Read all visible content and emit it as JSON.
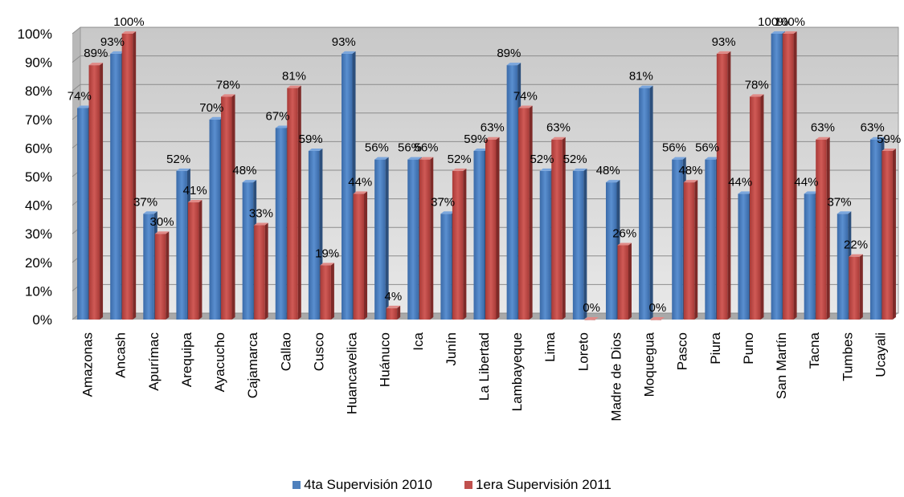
{
  "chart_data": {
    "type": "bar",
    "title": "",
    "xlabel": "",
    "ylabel": "",
    "ylim": [
      0,
      100
    ],
    "yticks": [
      "0%",
      "10%",
      "20%",
      "30%",
      "40%",
      "50%",
      "60%",
      "70%",
      "80%",
      "90%",
      "100%"
    ],
    "grid": true,
    "legend_position": "bottom",
    "categories": [
      "Amazonas",
      "Ancash",
      "Apurímac",
      "Arequipa",
      "Ayacucho",
      "Cajamarca",
      "Callao",
      "Cusco",
      "Huancavelica",
      "Huánuco",
      "Ica",
      "Junín",
      "La Libertad",
      "Lambayeque",
      "Lima",
      "Loreto",
      "Madre de Dios",
      "Moquegua",
      "Pasco",
      "Piura",
      "Puno",
      "San Martín",
      "Tacna",
      "Tumbes",
      "Ucayali"
    ],
    "series": [
      {
        "name": "4ta Supervisión 2010",
        "color": "#4F81BD",
        "values": [
          74,
          93,
          37,
          52,
          70,
          48,
          67,
          59,
          93,
          56,
          56,
          37,
          59,
          89,
          52,
          52,
          48,
          81,
          56,
          56,
          44,
          100,
          44,
          37,
          63
        ],
        "labels": [
          "74%",
          "93%",
          "37%",
          "52%",
          "70%",
          "48%",
          "67%",
          "59%",
          "93%",
          "56%",
          "56%",
          "37%",
          "59%",
          "89%",
          "52%",
          "52%",
          "48%",
          "81%",
          "56%",
          "56%",
          "44%",
          "100%",
          "44%",
          "37%",
          "63%"
        ]
      },
      {
        "name": "1era Supervisión 2011",
        "color": "#C0504D",
        "values": [
          89,
          100,
          30,
          41,
          78,
          33,
          81,
          19,
          44,
          4,
          56,
          52,
          63,
          74,
          63,
          0,
          26,
          0,
          48,
          93,
          78,
          100,
          63,
          22,
          59
        ],
        "labels": [
          "89%",
          "100%",
          "30%",
          "41%",
          "78%",
          "33%",
          "81%",
          "19%",
          "44%",
          "4%",
          "56%",
          "52%",
          "63%",
          "74%",
          "63%",
          "0%",
          "26%",
          "0%",
          "48%",
          "93%",
          "78%",
          "100%",
          "63%",
          "22%",
          "59%"
        ]
      }
    ]
  }
}
